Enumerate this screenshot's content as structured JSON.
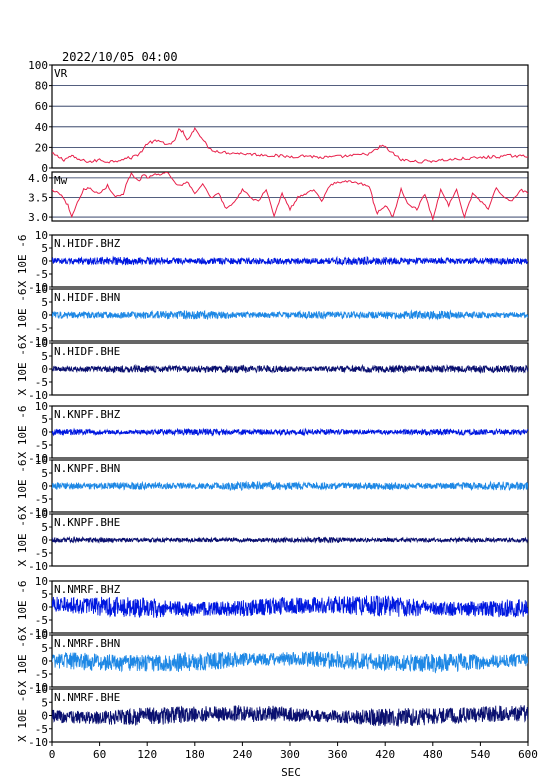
{
  "header": {
    "datetime": "2022/10/05 04:00"
  },
  "x_axis": {
    "label": "SEC",
    "range": [
      0,
      600
    ],
    "ticks": [
      0,
      60,
      120,
      180,
      240,
      300,
      360,
      420,
      480,
      540,
      600
    ],
    "tick_labels": [
      "0",
      "60",
      "120",
      "180",
      "240",
      "300",
      "360",
      "420",
      "480",
      "540",
      "600"
    ]
  },
  "colors": {
    "axis": "#000000",
    "grid": "#1a2a55",
    "vr_mw_line": "#e8204a",
    "bhz": "#0018e0",
    "bhn": "#1e88e5",
    "bhe": "#0a1070"
  },
  "chart_data": [
    {
      "type": "line",
      "label": "VR",
      "ylim": [
        0,
        100
      ],
      "yticks": [
        0,
        20,
        40,
        60,
        80,
        100
      ],
      "ytick_labels": [
        "0",
        "20",
        "40",
        "60",
        "80",
        "100"
      ],
      "grid": true,
      "x": [
        0,
        5,
        10,
        15,
        20,
        25,
        30,
        40,
        50,
        60,
        70,
        80,
        90,
        100,
        110,
        115,
        120,
        130,
        140,
        150,
        155,
        160,
        165,
        170,
        175,
        180,
        185,
        190,
        195,
        200,
        210,
        220,
        240,
        260,
        280,
        300,
        320,
        340,
        360,
        380,
        400,
        410,
        415,
        420,
        430,
        440,
        460,
        480,
        500,
        520,
        540,
        560,
        580,
        600
      ],
      "y": [
        14,
        12,
        10,
        8,
        10,
        12,
        9,
        7,
        6,
        8,
        6,
        7,
        9,
        10,
        14,
        18,
        24,
        26,
        25,
        22,
        28,
        37,
        35,
        26,
        33,
        38,
        34,
        28,
        22,
        18,
        16,
        15,
        14,
        13,
        12,
        11,
        12,
        10,
        11,
        12,
        14,
        18,
        22,
        20,
        14,
        8,
        6,
        7,
        8,
        9,
        10,
        11,
        12,
        11
      ]
    },
    {
      "type": "line",
      "label": "Mw",
      "ylim": [
        2.9,
        4.15
      ],
      "yticks": [
        3.0,
        3.5,
        4.0
      ],
      "ytick_labels": [
        "3.0",
        "3.5",
        "4.0"
      ],
      "grid": true,
      "x": [
        0,
        10,
        20,
        25,
        30,
        40,
        45,
        50,
        60,
        70,
        80,
        90,
        95,
        100,
        110,
        115,
        120,
        130,
        140,
        145,
        150,
        160,
        170,
        180,
        190,
        200,
        210,
        220,
        230,
        240,
        250,
        260,
        270,
        280,
        290,
        300,
        310,
        320,
        330,
        340,
        350,
        360,
        380,
        400,
        405,
        410,
        420,
        430,
        440,
        450,
        460,
        470,
        480,
        490,
        500,
        510,
        520,
        530,
        540,
        550,
        560,
        570,
        580,
        590,
        600
      ],
      "y": [
        3.7,
        3.6,
        3.3,
        3.0,
        3.3,
        3.7,
        3.75,
        3.7,
        3.6,
        3.8,
        3.5,
        3.6,
        3.9,
        4.1,
        3.9,
        4.1,
        4.0,
        4.1,
        4.1,
        4.15,
        4.0,
        3.8,
        3.9,
        3.6,
        3.85,
        3.5,
        3.6,
        3.2,
        3.4,
        3.7,
        3.5,
        3.4,
        3.7,
        3.0,
        3.6,
        3.2,
        3.5,
        3.6,
        3.7,
        3.4,
        3.8,
        3.9,
        3.9,
        3.8,
        3.4,
        3.1,
        3.3,
        3.0,
        3.7,
        3.3,
        3.2,
        3.6,
        2.95,
        3.7,
        3.3,
        3.7,
        3.0,
        3.6,
        3.4,
        3.2,
        3.75,
        3.5,
        3.4,
        3.7,
        3.6
      ]
    },
    {
      "type": "line",
      "label": "N.HIDF.BHZ",
      "ylim": [
        -10,
        10
      ],
      "yticks": [
        -10,
        -5,
        0,
        5,
        10
      ],
      "ytick_labels": [
        "-10",
        "-5",
        "0",
        "5",
        "10"
      ],
      "grid": false,
      "amplitude": 1.2,
      "color": "bhz",
      "ylabel": "X 10E -6"
    },
    {
      "type": "line",
      "label": "N.HIDF.BHN",
      "ylim": [
        -10,
        10
      ],
      "yticks": [
        -10,
        -5,
        0,
        5,
        10
      ],
      "ytick_labels": [
        "-10",
        "-5",
        "0",
        "5",
        "10"
      ],
      "grid": false,
      "amplitude": 1.3,
      "color": "bhn",
      "ylabel": "X 10E -6"
    },
    {
      "type": "line",
      "label": "N.HIDF.BHE",
      "ylim": [
        -10,
        10
      ],
      "yticks": [
        -10,
        -5,
        0,
        5,
        10
      ],
      "ytick_labels": [
        "-10",
        "-5",
        "0",
        "5",
        "10"
      ],
      "grid": false,
      "amplitude": 1.2,
      "color": "bhe",
      "ylabel": "X 10E -6"
    },
    {
      "type": "line",
      "label": "N.KNPF.BHZ",
      "ylim": [
        -10,
        10
      ],
      "yticks": [
        -10,
        -5,
        0,
        5,
        10
      ],
      "ytick_labels": [
        "-10",
        "-5",
        "0",
        "5",
        "10"
      ],
      "grid": false,
      "amplitude": 1.0,
      "color": "bhz",
      "ylabel": "X 10E -6"
    },
    {
      "type": "line",
      "label": "N.KNPF.BHN",
      "ylim": [
        -10,
        10
      ],
      "yticks": [
        -10,
        -5,
        0,
        5,
        10
      ],
      "ytick_labels": [
        "-10",
        "-5",
        "0",
        "5",
        "10"
      ],
      "grid": false,
      "amplitude": 1.3,
      "color": "bhn",
      "ylabel": "X 10E -6"
    },
    {
      "type": "line",
      "label": "N.KNPF.BHE",
      "ylim": [
        -10,
        10
      ],
      "yticks": [
        -10,
        -5,
        0,
        5,
        10
      ],
      "ytick_labels": [
        "-10",
        "-5",
        "0",
        "5",
        "10"
      ],
      "grid": false,
      "amplitude": 0.8,
      "color": "bhe",
      "ylabel": "X 10E -6"
    },
    {
      "type": "line",
      "label": "N.NMRF.BHZ",
      "ylim": [
        -10,
        10
      ],
      "yticks": [
        -10,
        -5,
        0,
        5,
        10
      ],
      "ytick_labels": [
        "-10",
        "-5",
        "0",
        "5",
        "10"
      ],
      "grid": false,
      "amplitude": 3.2,
      "color": "bhz",
      "ylabel": "X 10E -6"
    },
    {
      "type": "line",
      "label": "N.NMRF.BHN",
      "ylim": [
        -10,
        10
      ],
      "yticks": [
        -10,
        -5,
        0,
        5,
        10
      ],
      "ytick_labels": [
        "-10",
        "-5",
        "0",
        "5",
        "10"
      ],
      "grid": false,
      "amplitude": 3.0,
      "color": "bhn",
      "ylabel": "X 10E -6"
    },
    {
      "type": "line",
      "label": "N.NMRF.BHE",
      "ylim": [
        -10,
        10
      ],
      "yticks": [
        -10,
        -5,
        0,
        5,
        10
      ],
      "ytick_labels": [
        "-10",
        "-5",
        "0",
        "5",
        "10"
      ],
      "grid": false,
      "amplitude": 2.8,
      "color": "bhe",
      "ylabel": "X 10E -6"
    }
  ]
}
